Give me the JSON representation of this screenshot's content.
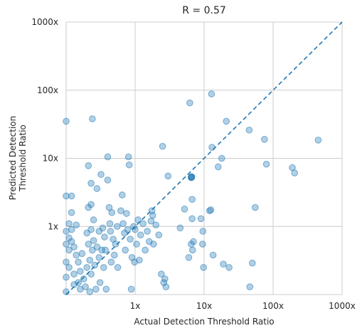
{
  "chart_data": {
    "type": "scatter",
    "title": "R = 0.57",
    "xlabel": "Actual Detection Threshold Ratio",
    "ylabel_lines": [
      "Predicted Detection",
      "Threshold Ratio"
    ],
    "x_scale": "log",
    "y_scale": "log",
    "xlim": [
      0.1,
      1000
    ],
    "ylim": [
      0.1,
      1000
    ],
    "x_ticks": [
      {
        "value": 1,
        "label": "1x"
      },
      {
        "value": 10,
        "label": "10x"
      },
      {
        "value": 100,
        "label": "100x"
      },
      {
        "value": 1000,
        "label": "1000x"
      }
    ],
    "y_ticks": [
      {
        "value": 1,
        "label": "1x"
      },
      {
        "value": 10,
        "label": "10x"
      },
      {
        "value": 100,
        "label": "100x"
      },
      {
        "value": 1000,
        "label": "1000x"
      }
    ],
    "grid": true,
    "point_color": "#1f77b4",
    "reference_line": {
      "style": "dashed",
      "color": "#1f77b4",
      "from": [
        0.1,
        0.1
      ],
      "to": [
        1000,
        1000
      ]
    },
    "points": [
      [
        0.1,
        35
      ],
      [
        0.1,
        2.8
      ],
      [
        0.1,
        0.85
      ],
      [
        0.1,
        0.55
      ],
      [
        0.1,
        0.3
      ],
      [
        0.1,
        0.18
      ],
      [
        0.1,
        0.11
      ],
      [
        0.11,
        1.1
      ],
      [
        0.11,
        0.68
      ],
      [
        0.11,
        0.45
      ],
      [
        0.11,
        0.25
      ],
      [
        0.12,
        2.8
      ],
      [
        0.12,
        1.6
      ],
      [
        0.12,
        0.9
      ],
      [
        0.12,
        0.6
      ],
      [
        0.13,
        0.5
      ],
      [
        0.13,
        0.2
      ],
      [
        0.13,
        0.14
      ],
      [
        0.14,
        1.05
      ],
      [
        0.14,
        0.38
      ],
      [
        0.15,
        0.3
      ],
      [
        0.15,
        0.15
      ],
      [
        0.16,
        0.22
      ],
      [
        0.16,
        0.12
      ],
      [
        0.17,
        0.4
      ],
      [
        0.18,
        0.17
      ],
      [
        0.19,
        0.13
      ],
      [
        0.2,
        0.8
      ],
      [
        0.2,
        0.25
      ],
      [
        0.21,
        7.8
      ],
      [
        0.21,
        1.9
      ],
      [
        0.21,
        0.55
      ],
      [
        0.22,
        0.32
      ],
      [
        0.22,
        0.11
      ],
      [
        0.23,
        4.3
      ],
      [
        0.23,
        2.1
      ],
      [
        0.23,
        0.9
      ],
      [
        0.23,
        0.2
      ],
      [
        0.24,
        38
      ],
      [
        0.24,
        0.45
      ],
      [
        0.25,
        1.25
      ],
      [
        0.25,
        0.62
      ],
      [
        0.26,
        0.27
      ],
      [
        0.27,
        0.12
      ],
      [
        0.28,
        3.6
      ],
      [
        0.28,
        0.5
      ],
      [
        0.3,
        0.85
      ],
      [
        0.3,
        0.35
      ],
      [
        0.31,
        0.15
      ],
      [
        0.32,
        5.8
      ],
      [
        0.33,
        0.45
      ],
      [
        0.34,
        0.95
      ],
      [
        0.35,
        0.25
      ],
      [
        0.36,
        0.7
      ],
      [
        0.37,
        0.45
      ],
      [
        0.38,
        0.12
      ],
      [
        0.4,
        10.5
      ],
      [
        0.4,
        4.8
      ],
      [
        0.42,
        1.9
      ],
      [
        0.43,
        1.1
      ],
      [
        0.44,
        0.85
      ],
      [
        0.45,
        0.3
      ],
      [
        0.46,
        1.6
      ],
      [
        0.48,
        0.65
      ],
      [
        0.5,
        0.38
      ],
      [
        0.52,
        0.55
      ],
      [
        0.55,
        1.0
      ],
      [
        0.56,
        0.25
      ],
      [
        0.62,
        1.7
      ],
      [
        0.65,
        2.9
      ],
      [
        0.67,
        1.1
      ],
      [
        0.7,
        0.8
      ],
      [
        0.72,
        0.45
      ],
      [
        0.75,
        1.55
      ],
      [
        0.78,
        0.9
      ],
      [
        0.8,
        10.5
      ],
      [
        0.82,
        8.0
      ],
      [
        0.85,
        0.65
      ],
      [
        0.88,
        0.12
      ],
      [
        0.9,
        0.35
      ],
      [
        0.95,
        1.0
      ],
      [
        0.98,
        0.3
      ],
      [
        1.0,
        0.9
      ],
      [
        1.05,
        0.55
      ],
      [
        1.1,
        1.25
      ],
      [
        1.15,
        0.32
      ],
      [
        1.2,
        0.75
      ],
      [
        1.3,
        1.1
      ],
      [
        1.4,
        0.45
      ],
      [
        1.5,
        0.85
      ],
      [
        1.6,
        0.6
      ],
      [
        1.7,
        1.2
      ],
      [
        1.75,
        1.7
      ],
      [
        1.8,
        1.45
      ],
      [
        1.85,
        0.55
      ],
      [
        2.0,
        1.05
      ],
      [
        2.2,
        0.75
      ],
      [
        2.4,
        0.2
      ],
      [
        2.5,
        15
      ],
      [
        2.6,
        0.15
      ],
      [
        2.7,
        0.17
      ],
      [
        2.8,
        0.13
      ],
      [
        3.0,
        5.5
      ],
      [
        4.5,
        0.95
      ],
      [
        5.2,
        1.8
      ],
      [
        6.0,
        0.35
      ],
      [
        6.2,
        65
      ],
      [
        6.5,
        0.55
      ],
      [
        6.5,
        5.3
      ],
      [
        6.5,
        5.2
      ],
      [
        6.6,
        5.4
      ],
      [
        6.6,
        5.25
      ],
      [
        6.7,
        2.5
      ],
      [
        6.7,
        1.3
      ],
      [
        6.8,
        0.45
      ],
      [
        7.0,
        0.6
      ],
      [
        9.0,
        1.3
      ],
      [
        9.5,
        0.55
      ],
      [
        9.6,
        0.85
      ],
      [
        9.8,
        0.25
      ],
      [
        12.0,
        1.7
      ],
      [
        12.5,
        1.75
      ],
      [
        12.8,
        88
      ],
      [
        13.0,
        14.5
      ],
      [
        13.5,
        0.38
      ],
      [
        16.0,
        7.5
      ],
      [
        18.0,
        10
      ],
      [
        19.0,
        0.28
      ],
      [
        21.0,
        35
      ],
      [
        23.0,
        0.25
      ],
      [
        45.0,
        26
      ],
      [
        46.0,
        0.13
      ],
      [
        50.0,
        0.29
      ],
      [
        55.0,
        1.9
      ],
      [
        75.0,
        19
      ],
      [
        80.0,
        8.2
      ],
      [
        190.0,
        7.3
      ],
      [
        205.0,
        6.1
      ],
      [
        450.0,
        18.5
      ]
    ]
  }
}
